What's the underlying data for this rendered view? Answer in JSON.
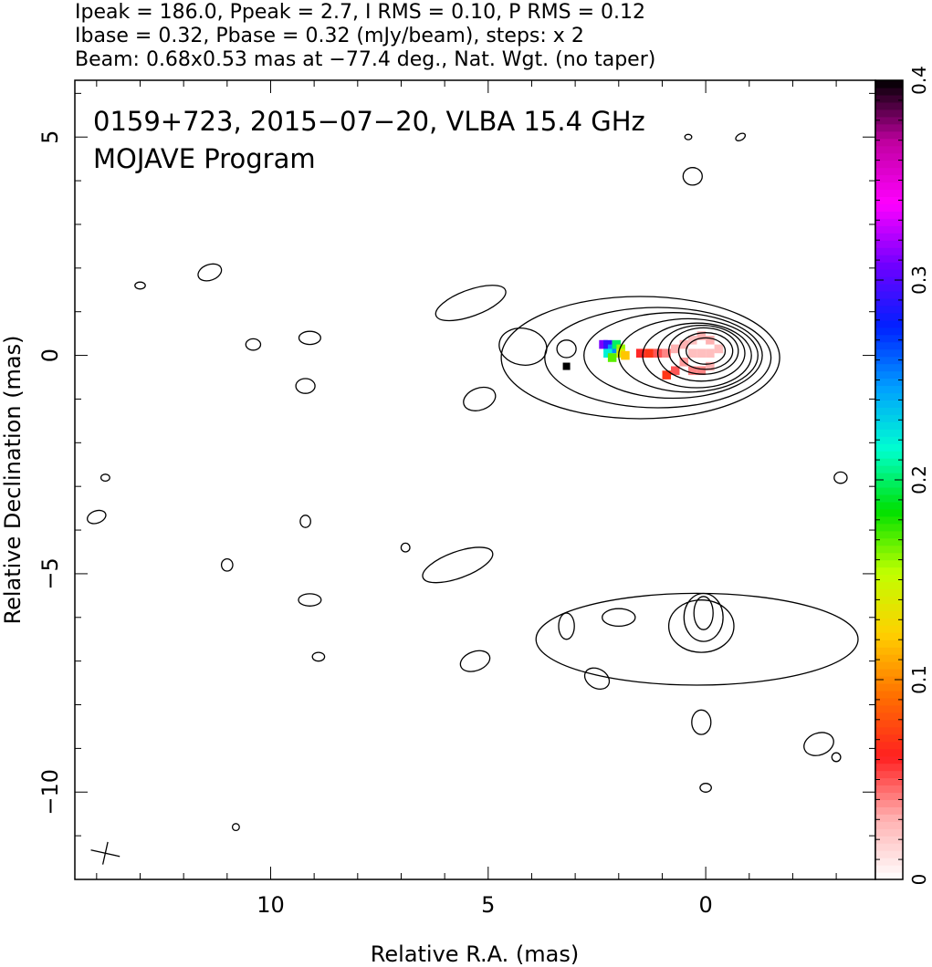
{
  "header_lines": [
    "Ipeak = 186.0, Ppeak = 2.7, I RMS = 0.10, P RMS = 0.12",
    "Ibase = 0.32, Pbase = 0.32 (mJy/beam), steps: x 2",
    "Beam: 0.68x0.53 mas at −77.4 deg., Nat. Wgt. (no taper)"
  ],
  "chart_data": {
    "type": "heatmap",
    "map_title": "0159+723, 2015−07−20, VLBA 15.4 GHz",
    "map_subtitle": "MOJAVE Program",
    "xlabel": "Relative R.A. (mas)",
    "ylabel": "Relative Declination (mas)",
    "xlim": [
      14.5,
      -3.9
    ],
    "ylim": [
      -12.0,
      6.3
    ],
    "x_ticks": [
      {
        "value": 10,
        "label": "10"
      },
      {
        "value": 5,
        "label": "5"
      },
      {
        "value": 0,
        "label": "0"
      }
    ],
    "y_ticks": [
      {
        "value": 5,
        "label": "5"
      },
      {
        "value": 0,
        "label": "0"
      },
      {
        "value": -5,
        "label": "−5"
      },
      {
        "value": -10,
        "label": "−10"
      }
    ],
    "colorbar": {
      "range": [
        0,
        0.4
      ],
      "ticks": [
        {
          "value": 0,
          "label": "0"
        },
        {
          "value": 0.1,
          "label": "0.1"
        },
        {
          "value": 0.2,
          "label": "0.2"
        },
        {
          "value": 0.3,
          "label": "0.3"
        },
        {
          "value": 0.4,
          "label": "0.4"
        }
      ],
      "colormap": [
        "#ffffff",
        "#ffb0b0",
        "#ff2020",
        "#ff7000",
        "#ffd000",
        "#c0ff00",
        "#00e000",
        "#00ffd0",
        "#00a0ff",
        "#0020ff",
        "#7000ff",
        "#ff00ff",
        "#c000a0",
        "#000000"
      ]
    },
    "beam": {
      "major": 0.68,
      "minor": 0.53,
      "pa_deg": -77.4,
      "center": [
        13.8,
        -11.4
      ]
    },
    "core_marker": [
      3.2,
      -0.25
    ],
    "contours": [
      {
        "cx": 0.0,
        "cy": 0.1,
        "rx": 0.45,
        "ry": 0.3,
        "angle": 0
      },
      {
        "cx": 0.0,
        "cy": 0.1,
        "rx": 0.62,
        "ry": 0.42,
        "angle": 0
      },
      {
        "cx": 0.05,
        "cy": 0.1,
        "rx": 0.8,
        "ry": 0.53,
        "angle": 0
      },
      {
        "cx": 0.1,
        "cy": 0.05,
        "rx": 1.0,
        "ry": 0.64,
        "angle": 0
      },
      {
        "cx": 0.2,
        "cy": 0.0,
        "rx": 1.25,
        "ry": 0.74,
        "angle": 0
      },
      {
        "cx": 0.4,
        "cy": 0.0,
        "rx": 1.6,
        "ry": 0.84,
        "angle": 0
      },
      {
        "cx": 0.75,
        "cy": 0.0,
        "rx": 2.05,
        "ry": 0.98,
        "angle": 0
      },
      {
        "cx": 1.1,
        "cy": -0.05,
        "rx": 2.6,
        "ry": 1.15,
        "angle": 0
      },
      {
        "cx": 1.5,
        "cy": -0.05,
        "rx": 3.2,
        "ry": 1.4,
        "angle": 0
      },
      {
        "cx": 3.2,
        "cy": 0.15,
        "rx": 0.22,
        "ry": 0.2,
        "angle": 0
      },
      {
        "cx": 4.2,
        "cy": 0.2,
        "rx": 0.55,
        "ry": 0.42,
        "angle": 10
      },
      {
        "cx": 5.4,
        "cy": 1.2,
        "rx": 0.85,
        "ry": 0.3,
        "angle": -20
      },
      {
        "cx": 5.2,
        "cy": -1.0,
        "rx": 0.38,
        "ry": 0.25,
        "angle": -20
      },
      {
        "cx": 0.2,
        "cy": -6.5,
        "rx": 3.7,
        "ry": 1.05,
        "angle": 0
      },
      {
        "cx": 0.1,
        "cy": -6.2,
        "rx": 0.75,
        "ry": 0.6,
        "angle": 0
      },
      {
        "cx": 0.05,
        "cy": -6.0,
        "rx": 0.45,
        "ry": 0.55,
        "angle": 0
      },
      {
        "cx": 0.05,
        "cy": -5.9,
        "rx": 0.22,
        "ry": 0.38,
        "angle": 0
      },
      {
        "cx": 3.2,
        "cy": -6.2,
        "rx": 0.18,
        "ry": 0.3,
        "angle": 0
      },
      {
        "cx": 2.0,
        "cy": -6.0,
        "rx": 0.38,
        "ry": 0.2,
        "angle": 0
      },
      {
        "cx": 5.7,
        "cy": -4.8,
        "rx": 0.85,
        "ry": 0.3,
        "angle": -20
      },
      {
        "cx": 5.3,
        "cy": -7.0,
        "rx": 0.35,
        "ry": 0.22,
        "angle": -20
      },
      {
        "cx": 2.5,
        "cy": -7.4,
        "rx": 0.3,
        "ry": 0.22,
        "angle": 30
      },
      {
        "cx": 0.1,
        "cy": -8.4,
        "rx": 0.22,
        "ry": 0.28,
        "angle": 0
      },
      {
        "cx": 0.0,
        "cy": -9.9,
        "rx": 0.13,
        "ry": 0.1,
        "angle": 0
      },
      {
        "cx": -2.6,
        "cy": -8.9,
        "rx": 0.35,
        "ry": 0.25,
        "angle": -20
      },
      {
        "cx": -3.0,
        "cy": -9.2,
        "rx": 0.1,
        "ry": 0.1,
        "angle": 0
      },
      {
        "cx": -3.1,
        "cy": -2.8,
        "rx": 0.15,
        "ry": 0.13,
        "angle": 0
      },
      {
        "cx": 11.4,
        "cy": 1.9,
        "rx": 0.28,
        "ry": 0.18,
        "angle": -20
      },
      {
        "cx": 13.0,
        "cy": 1.6,
        "rx": 0.12,
        "ry": 0.08,
        "angle": 0
      },
      {
        "cx": 10.4,
        "cy": 0.25,
        "rx": 0.17,
        "ry": 0.13,
        "angle": 0
      },
      {
        "cx": 9.1,
        "cy": 0.4,
        "rx": 0.25,
        "ry": 0.15,
        "angle": 0
      },
      {
        "cx": 9.2,
        "cy": -0.7,
        "rx": 0.22,
        "ry": 0.17,
        "angle": 0
      },
      {
        "cx": 14.0,
        "cy": -3.7,
        "rx": 0.22,
        "ry": 0.14,
        "angle": -20
      },
      {
        "cx": 13.8,
        "cy": -2.8,
        "rx": 0.1,
        "ry": 0.08,
        "angle": 0
      },
      {
        "cx": 9.2,
        "cy": -3.8,
        "rx": 0.12,
        "ry": 0.14,
        "angle": 0
      },
      {
        "cx": 11.0,
        "cy": -4.8,
        "rx": 0.13,
        "ry": 0.14,
        "angle": 0
      },
      {
        "cx": 9.1,
        "cy": -5.6,
        "rx": 0.26,
        "ry": 0.14,
        "angle": 0
      },
      {
        "cx": 8.9,
        "cy": -6.9,
        "rx": 0.14,
        "ry": 0.1,
        "angle": 0
      },
      {
        "cx": 6.9,
        "cy": -4.4,
        "rx": 0.1,
        "ry": 0.1,
        "angle": 0
      },
      {
        "cx": 10.8,
        "cy": -10.8,
        "rx": 0.08,
        "ry": 0.08,
        "angle": 0
      },
      {
        "cx": 0.4,
        "cy": 5.0,
        "rx": 0.08,
        "ry": 0.06,
        "angle": 0
      },
      {
        "cx": -0.8,
        "cy": 5.0,
        "rx": 0.12,
        "ry": 0.07,
        "angle": -30
      },
      {
        "cx": 0.3,
        "cy": 4.1,
        "rx": 0.22,
        "ry": 0.2,
        "angle": 0
      }
    ],
    "polarization_pixels": [
      {
        "x": 2.35,
        "y": 0.25,
        "value": 0.31
      },
      {
        "x": 2.25,
        "y": 0.25,
        "value": 0.29
      },
      {
        "x": 2.15,
        "y": 0.15,
        "value": 0.25
      },
      {
        "x": 2.05,
        "y": 0.25,
        "value": 0.2
      },
      {
        "x": 1.95,
        "y": 0.15,
        "value": 0.16
      },
      {
        "x": 1.95,
        "y": 0.05,
        "value": 0.14
      },
      {
        "x": 1.85,
        "y": 0.0,
        "value": 0.12
      },
      {
        "x": 2.25,
        "y": 0.05,
        "value": 0.22
      },
      {
        "x": 2.15,
        "y": -0.05,
        "value": 0.17
      },
      {
        "x": 1.5,
        "y": 0.05,
        "value": 0.06
      },
      {
        "x": 1.3,
        "y": 0.05,
        "value": 0.07
      },
      {
        "x": 1.1,
        "y": 0.05,
        "value": 0.05
      },
      {
        "x": 0.9,
        "y": 0.05,
        "value": 0.04
      },
      {
        "x": 0.7,
        "y": 0.15,
        "value": 0.03
      },
      {
        "x": 0.5,
        "y": 0.25,
        "value": 0.03
      },
      {
        "x": 0.3,
        "y": 0.35,
        "value": 0.025
      },
      {
        "x": 0.1,
        "y": 0.45,
        "value": 0.03
      },
      {
        "x": -0.1,
        "y": 0.35,
        "value": 0.03
      },
      {
        "x": 0.3,
        "y": 0.05,
        "value": 0.025
      },
      {
        "x": 0.1,
        "y": 0.05,
        "value": 0.025
      },
      {
        "x": -0.1,
        "y": 0.05,
        "value": 0.025
      },
      {
        "x": -0.3,
        "y": 0.15,
        "value": 0.025
      },
      {
        "x": 0.5,
        "y": -0.15,
        "value": 0.035
      },
      {
        "x": 0.7,
        "y": -0.35,
        "value": 0.05
      },
      {
        "x": 0.9,
        "y": -0.45,
        "value": 0.07
      },
      {
        "x": 0.3,
        "y": -0.35,
        "value": 0.04
      },
      {
        "x": 0.1,
        "y": -0.35,
        "value": 0.04
      },
      {
        "x": -0.1,
        "y": -0.25,
        "value": 0.03
      }
    ]
  }
}
